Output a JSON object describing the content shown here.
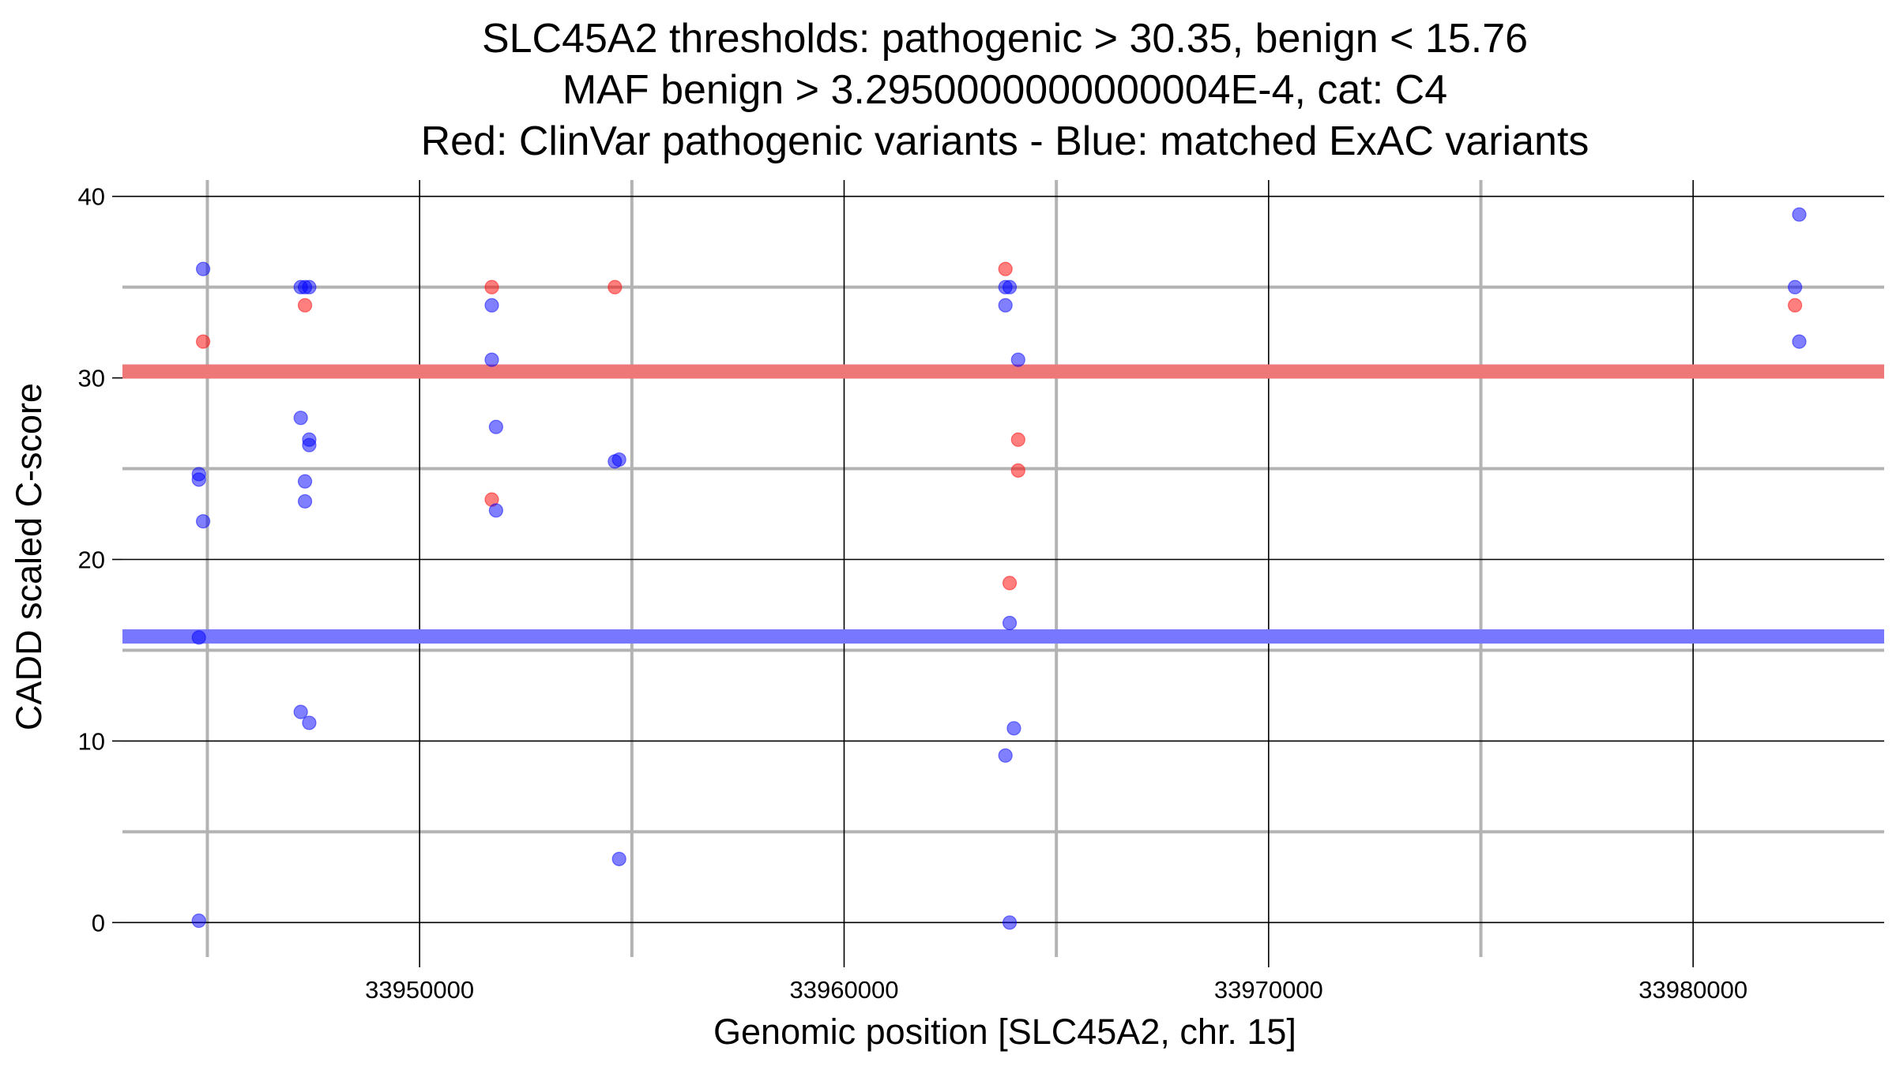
{
  "chart_data": {
    "type": "scatter",
    "title_lines": [
      "SLC45A2 thresholds: pathogenic > 30.35, benign < 15.76",
      "MAF benign > 3.2950000000000004E-4, cat: C4",
      "Red: ClinVar pathogenic variants - Blue: matched ExAC variants"
    ],
    "xlabel": "Genomic position [SLC45A2, chr. 15]",
    "ylabel": "CADD scaled C-score",
    "xlim": [
      33943000,
      33984500
    ],
    "ylim": [
      -1.9,
      40.9
    ],
    "x_ticks": [
      33950000,
      33960000,
      33970000,
      33980000
    ],
    "x_tick_labels": [
      "33950000",
      "33960000",
      "33970000",
      "33980000"
    ],
    "y_ticks": [
      0,
      10,
      20,
      30,
      40
    ],
    "y_tick_labels": [
      "0",
      "10",
      "20",
      "30",
      "40"
    ],
    "x_minor_gridlines": [
      33945000,
      33955000,
      33965000,
      33975000
    ],
    "y_minor_gridlines": [
      5,
      15,
      25,
      35
    ],
    "thresholds": {
      "pathogenic": 30.35,
      "benign": 15.76,
      "pathogenic_color": "#ee7777",
      "benign_color": "#7777ff"
    },
    "series": [
      {
        "name": "ClinVar pathogenic variants",
        "color": "#ff0000",
        "points": [
          {
            "x": 33944900,
            "y": 32.0
          },
          {
            "x": 33947300,
            "y": 34.0
          },
          {
            "x": 33951700,
            "y": 35.0
          },
          {
            "x": 33951700,
            "y": 23.3
          },
          {
            "x": 33954600,
            "y": 35.0
          },
          {
            "x": 33963800,
            "y": 36.0
          },
          {
            "x": 33964100,
            "y": 26.6
          },
          {
            "x": 33964100,
            "y": 24.9
          },
          {
            "x": 33963900,
            "y": 18.7
          },
          {
            "x": 33982400,
            "y": 34.0
          }
        ]
      },
      {
        "name": "matched ExAC variants",
        "color": "#0000ff",
        "points": [
          {
            "x": 33944900,
            "y": 36.0
          },
          {
            "x": 33944800,
            "y": 24.7
          },
          {
            "x": 33944800,
            "y": 24.4
          },
          {
            "x": 33944900,
            "y": 22.1
          },
          {
            "x": 33944800,
            "y": 15.7
          },
          {
            "x": 33944800,
            "y": 0.1
          },
          {
            "x": 33947200,
            "y": 35.0
          },
          {
            "x": 33947300,
            "y": 35.0
          },
          {
            "x": 33947400,
            "y": 35.0
          },
          {
            "x": 33947200,
            "y": 27.8
          },
          {
            "x": 33947400,
            "y": 26.6
          },
          {
            "x": 33947400,
            "y": 26.3
          },
          {
            "x": 33947300,
            "y": 24.3
          },
          {
            "x": 33947300,
            "y": 23.2
          },
          {
            "x": 33947200,
            "y": 11.6
          },
          {
            "x": 33947400,
            "y": 11.0
          },
          {
            "x": 33951700,
            "y": 34.0
          },
          {
            "x": 33951700,
            "y": 31.0
          },
          {
            "x": 33951800,
            "y": 27.3
          },
          {
            "x": 33951800,
            "y": 22.7
          },
          {
            "x": 33954600,
            "y": 25.4
          },
          {
            "x": 33954700,
            "y": 25.5
          },
          {
            "x": 33954700,
            "y": 3.5
          },
          {
            "x": 33963800,
            "y": 35.0
          },
          {
            "x": 33963900,
            "y": 35.0
          },
          {
            "x": 33963800,
            "y": 34.0
          },
          {
            "x": 33964100,
            "y": 31.0
          },
          {
            "x": 33963900,
            "y": 16.5
          },
          {
            "x": 33964000,
            "y": 10.7
          },
          {
            "x": 33963800,
            "y": 9.2
          },
          {
            "x": 33963900,
            "y": 0.0
          },
          {
            "x": 33982500,
            "y": 39.0
          },
          {
            "x": 33982400,
            "y": 35.0
          },
          {
            "x": 33982500,
            "y": 32.0
          }
        ]
      }
    ]
  }
}
